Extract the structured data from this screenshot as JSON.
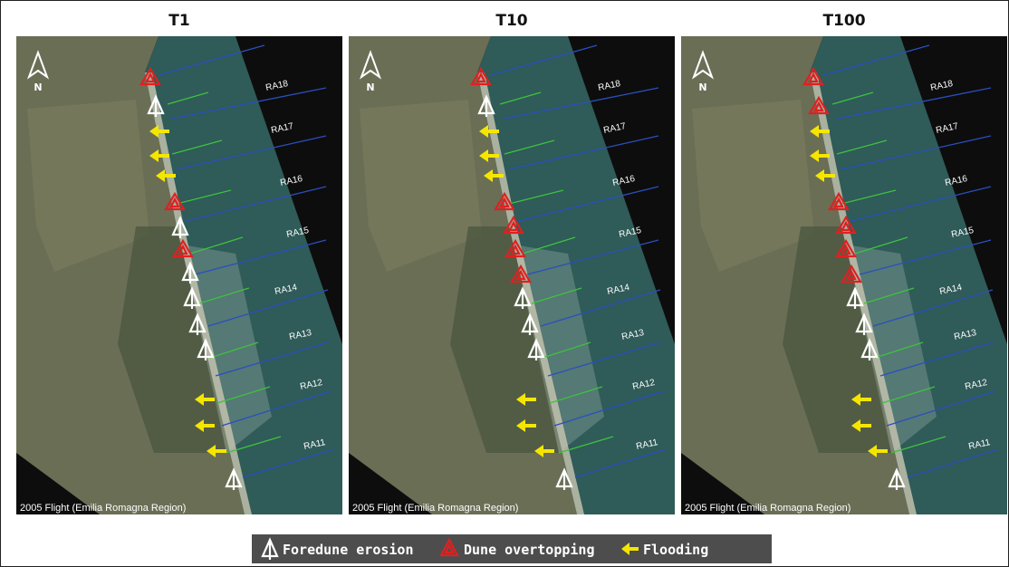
{
  "panels": [
    {
      "title": "T1",
      "north": "N",
      "credit": "2005 Flight (Emilia Romagna Region)",
      "transects": [
        "RA18",
        "RA17",
        "RA16",
        "RA15",
        "RA14",
        "RA13",
        "RA12",
        "RA11"
      ]
    },
    {
      "title": "T10",
      "north": "N",
      "credit": "2005 Flight (Emilia Romagna Region)",
      "transects": [
        "RA18",
        "RA17",
        "RA16",
        "RA15",
        "RA14",
        "RA13",
        "RA12",
        "RA11"
      ]
    },
    {
      "title": "T100",
      "north": "N",
      "credit": "2005 Flight (Emilia Romagna Region)",
      "transects": [
        "RA18",
        "RA17",
        "RA16",
        "RA15",
        "RA14",
        "RA13",
        "RA12",
        "RA11"
      ]
    }
  ],
  "legend": {
    "items": [
      "Foredune erosion",
      "Dune overtopping",
      "Flooding"
    ]
  }
}
